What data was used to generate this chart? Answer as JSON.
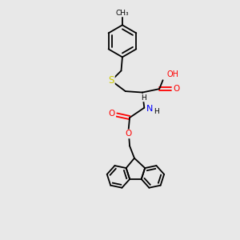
{
  "bg_color": "#e8e8e8",
  "bond_color": "#000000",
  "bond_width": 1.3,
  "atom_colors": {
    "S": "#cccc00",
    "O": "#ff0000",
    "N": "#0000ff",
    "C": "#000000",
    "H": "#000000"
  }
}
